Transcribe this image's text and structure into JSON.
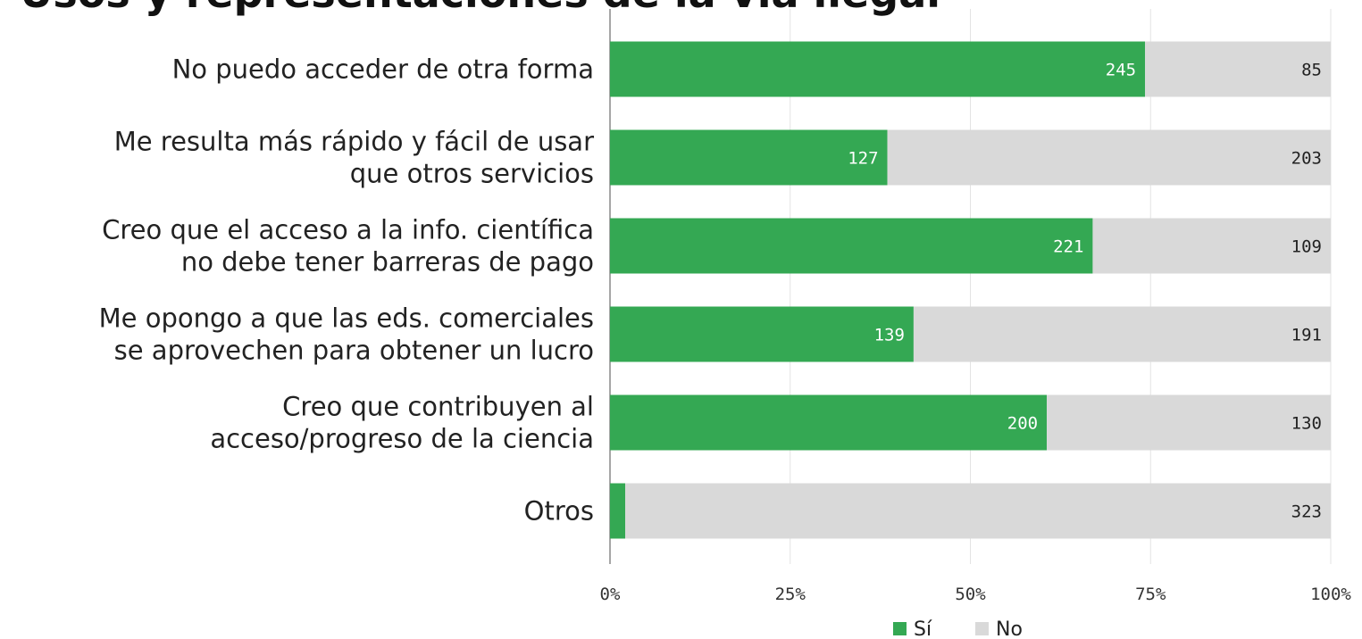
{
  "chart_data": {
    "type": "bar",
    "orientation": "horizontal",
    "stacking": "percent",
    "title": "Usos y representaciones de la vía ilegal",
    "categories": [
      "No puedo acceder de otra forma",
      "Me resulta más rápido y fácil de usar\nque otros servicios",
      "Creo que el acceso a la info. científica\nno debe tener barreras de pago",
      "Me opongo a que las eds. comerciales\nse aprovechen para obtener un lucro",
      "Creo que contribuyen al\nacceso/progreso de la ciencia",
      "Otros"
    ],
    "series": [
      {
        "name": "Sí",
        "color": "#34a853",
        "values": [
          245,
          127,
          221,
          139,
          200,
          7
        ]
      },
      {
        "name": "No",
        "color": "#d9d9d9",
        "values": [
          85,
          203,
          109,
          191,
          130,
          323
        ]
      }
    ],
    "xlim": [
      0,
      100
    ],
    "xticks": [
      {
        "value": 0,
        "label": "0%"
      },
      {
        "value": 25,
        "label": "25%"
      },
      {
        "value": 50,
        "label": "50%"
      },
      {
        "value": 75,
        "label": "75%"
      },
      {
        "value": 100,
        "label": "100%"
      }
    ],
    "grid": true,
    "legend": "bottom"
  }
}
